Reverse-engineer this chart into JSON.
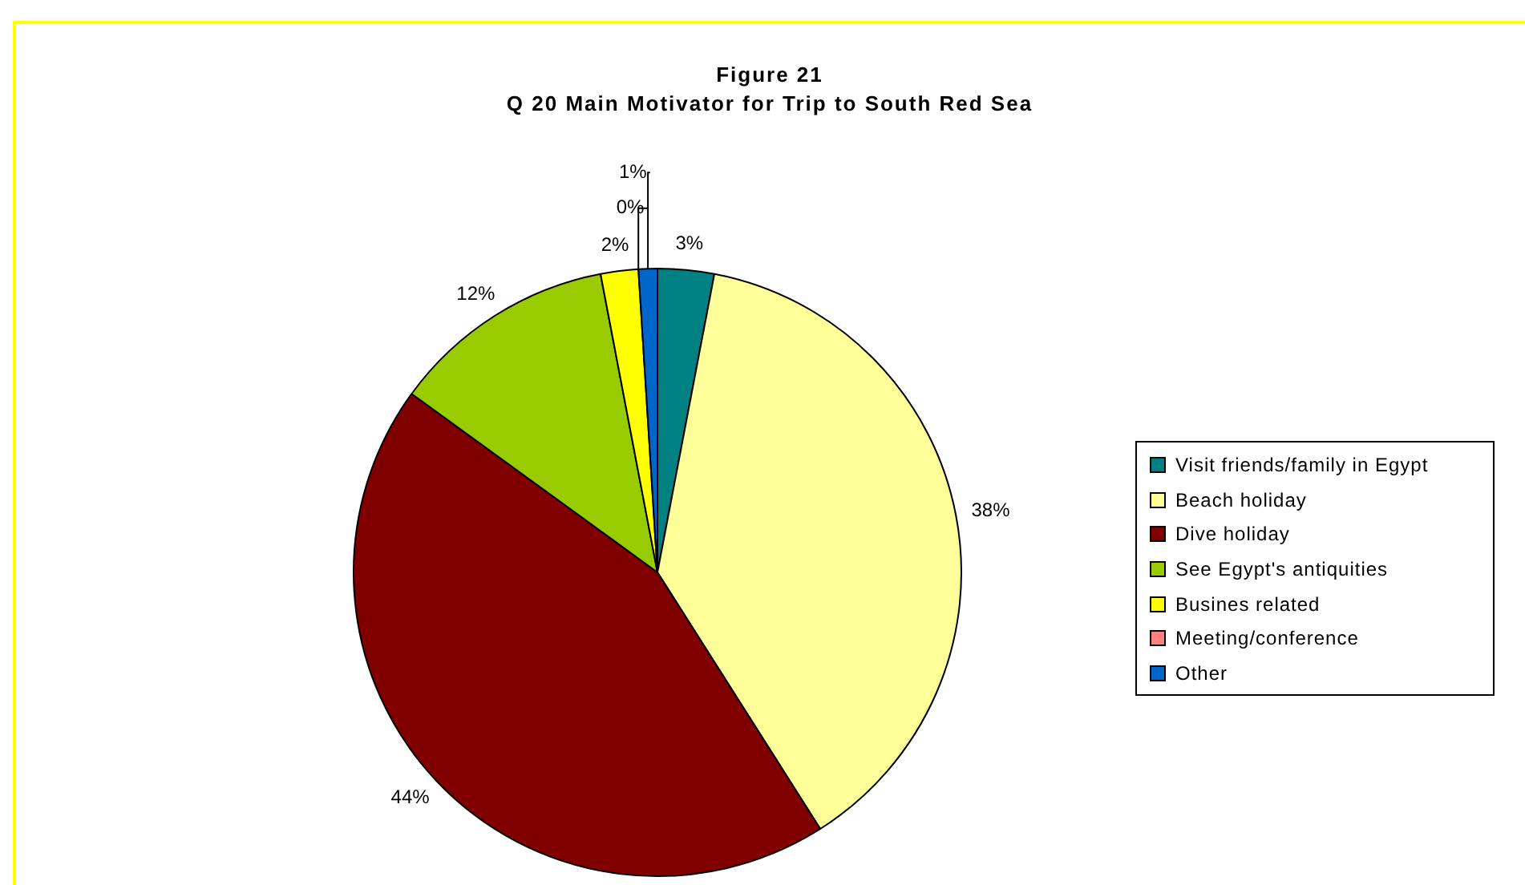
{
  "chart_data": {
    "type": "pie",
    "title": "Figure 21",
    "subtitle": "Q 20 Main Motivator for Trip to South Red Sea",
    "categories": [
      "Visit friends/family in Egypt",
      "Beach holiday",
      "Dive holiday",
      "See Egypt's antiquities",
      "Busines related",
      "Meeting/conference",
      "Other"
    ],
    "values": [
      3,
      38,
      44,
      12,
      2,
      0,
      1
    ],
    "value_labels": [
      "3%",
      "38%",
      "44%",
      "12%",
      "2%",
      "0%",
      "1%"
    ],
    "colors": [
      "#008080",
      "#ffff99",
      "#800000",
      "#99cc00",
      "#ffff00",
      "#ff8080",
      "#0066cc"
    ],
    "legend": "right"
  }
}
